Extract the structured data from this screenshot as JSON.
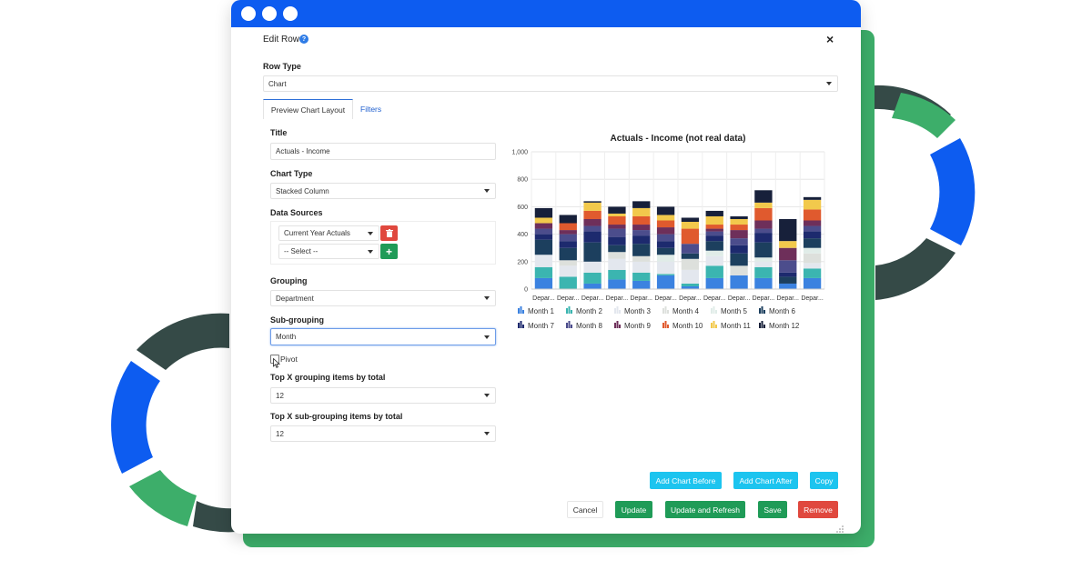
{
  "dialog": {
    "title": "Edit Row",
    "help_icon": "?",
    "close_icon": "×"
  },
  "row_type": {
    "label": "Row Type",
    "value": "Chart"
  },
  "tabs": [
    {
      "label": "Preview Chart Layout",
      "active": true
    },
    {
      "label": "Filters",
      "active": false
    }
  ],
  "form": {
    "title_label": "Title",
    "title_value": "Actuals - Income",
    "chart_type_label": "Chart Type",
    "chart_type_value": "Stacked Column",
    "data_sources_label": "Data Sources",
    "data_sources": [
      "Current Year Actuals",
      "-- Select --"
    ],
    "grouping_label": "Grouping",
    "grouping_value": "Department",
    "subgrouping_label": "Sub-grouping",
    "subgrouping_value": "Month",
    "pivot_label": "Pivot",
    "topx_group_label": "Top X grouping items by total",
    "topx_group_value": "12",
    "topx_sub_label": "Top X sub-grouping items by total",
    "topx_sub_value": "12"
  },
  "buttons": {
    "add_before": "Add Chart Before",
    "add_after": "Add Chart After",
    "copy": "Copy",
    "cancel": "Cancel",
    "update": "Update",
    "update_refresh": "Update and Refresh",
    "save": "Save",
    "remove": "Remove"
  },
  "colors": {
    "accent": "#0d5cf0",
    "green": "#3dae6a",
    "dark": "#354a47",
    "month": [
      "#3b82e0",
      "#3bb5b0",
      "#e3e7ee",
      "#dde0dc",
      "#e0ece8",
      "#1c3f5e",
      "#1d2a6e",
      "#4c4d8c",
      "#6e2f5a",
      "#e05a2e",
      "#f2c94c",
      "#17203a"
    ]
  },
  "chart_data": {
    "type": "bar",
    "stacked": true,
    "title": "Actuals - Income (not real data)",
    "xlabel": "",
    "ylabel": "",
    "ylim": [
      0,
      1000
    ],
    "yticks": [
      "0",
      "200",
      "400",
      "600",
      "800",
      "1,000"
    ],
    "categories": [
      "Depar...",
      "Depar...",
      "Depar...",
      "Depar...",
      "Depar...",
      "Depar...",
      "Depar...",
      "Depar...",
      "Depar...",
      "Depar...",
      "Depar...",
      "Depar..."
    ],
    "legend_position": "bottom",
    "series": [
      {
        "name": "Month 1",
        "values": [
          80,
          0,
          40,
          70,
          60,
          100,
          20,
          80,
          100,
          80,
          40,
          80
        ]
      },
      {
        "name": "Month 2",
        "values": [
          80,
          90,
          80,
          70,
          60,
          10,
          20,
          90,
          0,
          80,
          0,
          70
        ]
      },
      {
        "name": "Month 3",
        "values": [
          90,
          80,
          80,
          80,
          80,
          90,
          100,
          70,
          0,
          40,
          0,
          40
        ]
      },
      {
        "name": "Month 4",
        "values": [
          0,
          40,
          0,
          50,
          40,
          0,
          80,
          0,
          70,
          0,
          0,
          70
        ]
      },
      {
        "name": "Month 5",
        "values": [
          0,
          0,
          0,
          0,
          0,
          50,
          0,
          40,
          0,
          30,
          0,
          40
        ]
      },
      {
        "name": "Month 6",
        "values": [
          110,
          90,
          140,
          50,
          90,
          50,
          40,
          70,
          90,
          110,
          50,
          70
        ]
      },
      {
        "name": "Month 7",
        "values": [
          40,
          50,
          80,
          60,
          60,
          50,
          0,
          40,
          60,
          70,
          30,
          50
        ]
      },
      {
        "name": "Month 8",
        "values": [
          40,
          50,
          40,
          60,
          40,
          50,
          70,
          30,
          50,
          30,
          90,
          40
        ]
      },
      {
        "name": "Month 9",
        "values": [
          40,
          30,
          50,
          30,
          40,
          50,
          0,
          20,
          60,
          60,
          90,
          40
        ]
      },
      {
        "name": "Month 10",
        "values": [
          0,
          50,
          60,
          60,
          60,
          50,
          110,
          30,
          40,
          90,
          0,
          80
        ]
      },
      {
        "name": "Month 11",
        "values": [
          40,
          0,
          60,
          20,
          60,
          40,
          50,
          60,
          40,
          40,
          50,
          70
        ]
      },
      {
        "name": "Month 12",
        "values": [
          70,
          60,
          10,
          50,
          50,
          60,
          30,
          40,
          20,
          90,
          160,
          20
        ]
      }
    ]
  }
}
